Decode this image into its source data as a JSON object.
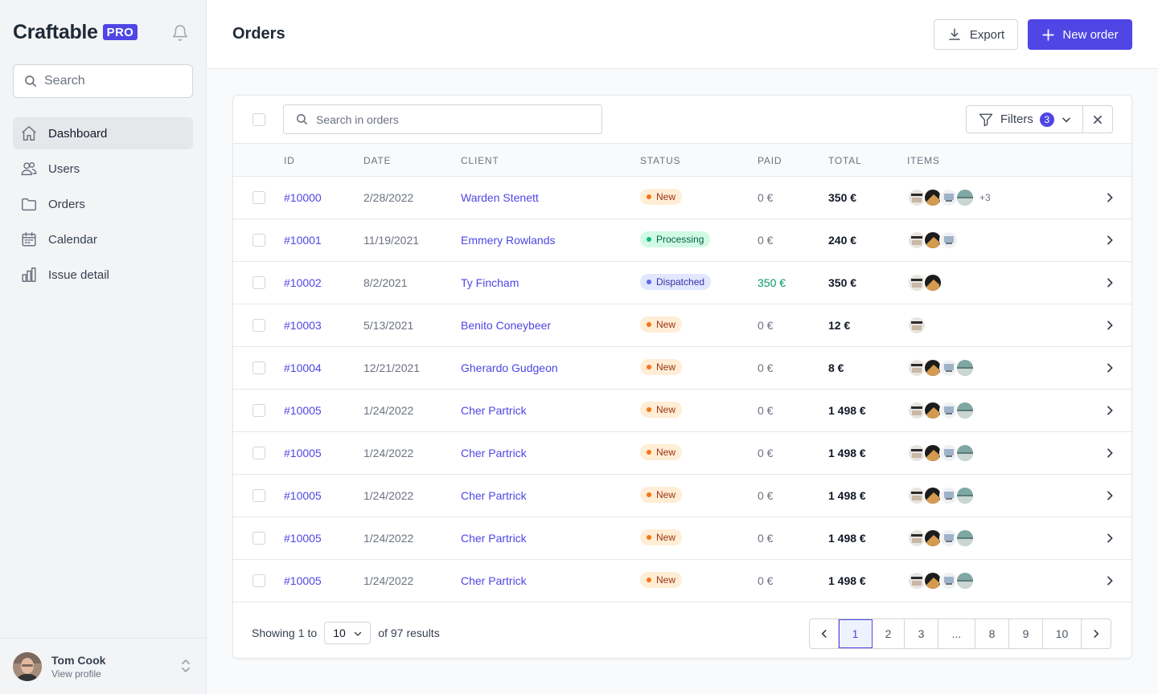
{
  "brand": {
    "name": "Craftable",
    "badge": "PRO"
  },
  "sidebar": {
    "search_placeholder": "Search",
    "items": [
      {
        "label": "Dashboard",
        "icon": "home-icon",
        "active": true
      },
      {
        "label": "Users",
        "icon": "users-icon",
        "active": false
      },
      {
        "label": "Orders",
        "icon": "folder-icon",
        "active": false
      },
      {
        "label": "Calendar",
        "icon": "calendar-icon",
        "active": false
      },
      {
        "label": "Issue detail",
        "icon": "bar-chart-icon",
        "active": false
      }
    ],
    "profile": {
      "name": "Tom Cook",
      "link": "View profile"
    }
  },
  "header": {
    "title": "Orders",
    "export_label": "Export",
    "new_label": "New order"
  },
  "toolbar": {
    "search_placeholder": "Search in orders",
    "filters_label": "Filters",
    "filters_count": "3"
  },
  "table": {
    "columns": [
      "ID",
      "DATE",
      "CLIENT",
      "STATUS",
      "PAID",
      "TOTAL",
      "ITEMS"
    ],
    "rows": [
      {
        "id": "#10000",
        "date": "2/28/2022",
        "client": "Warden Stenett",
        "status": "New",
        "paid": "0 €",
        "total": "350 €",
        "items": 4,
        "more": "+3"
      },
      {
        "id": "#10001",
        "date": "11/19/2021",
        "client": "Emmery Rowlands",
        "status": "Processing",
        "paid": "0 €",
        "total": "240 €",
        "items": 3,
        "more": ""
      },
      {
        "id": "#10002",
        "date": "8/2/2021",
        "client": "Ty Fincham",
        "status": "Dispatched",
        "paid": "350 €",
        "total": "350 €",
        "items": 2,
        "more": ""
      },
      {
        "id": "#10003",
        "date": "5/13/2021",
        "client": "Benito Coneybeer",
        "status": "New",
        "paid": "0 €",
        "total": "12 €",
        "items": 1,
        "more": ""
      },
      {
        "id": "#10004",
        "date": "12/21/2021",
        "client": "Gherardo Gudgeon",
        "status": "New",
        "paid": "0 €",
        "total": "8 €",
        "items": 4,
        "more": ""
      },
      {
        "id": "#10005",
        "date": "1/24/2022",
        "client": "Cher Partrick",
        "status": "New",
        "paid": "0 €",
        "total": "1 498 €",
        "items": 4,
        "more": ""
      },
      {
        "id": "#10005",
        "date": "1/24/2022",
        "client": "Cher Partrick",
        "status": "New",
        "paid": "0 €",
        "total": "1 498 €",
        "items": 4,
        "more": ""
      },
      {
        "id": "#10005",
        "date": "1/24/2022",
        "client": "Cher Partrick",
        "status": "New",
        "paid": "0 €",
        "total": "1 498 €",
        "items": 4,
        "more": ""
      },
      {
        "id": "#10005",
        "date": "1/24/2022",
        "client": "Cher Partrick",
        "status": "New",
        "paid": "0 €",
        "total": "1 498 €",
        "items": 4,
        "more": ""
      },
      {
        "id": "#10005",
        "date": "1/24/2022",
        "client": "Cher Partrick",
        "status": "New",
        "paid": "0 €",
        "total": "1 498 €",
        "items": 4,
        "more": ""
      }
    ]
  },
  "footer": {
    "showing_prefix": "Showing",
    "showing_from": "1",
    "showing_to_word": "to",
    "per_page": "10",
    "of_text": "of",
    "total": "97",
    "results_word": "results",
    "pages": [
      "1",
      "2",
      "3",
      "...",
      "8",
      "9",
      "10"
    ],
    "current_page": "1"
  },
  "colors": {
    "accent": "#4f46e5",
    "status_new_bg": "#ffedd5",
    "status_new_dot": "#f97316",
    "status_new_text": "#9a3412",
    "status_processing_bg": "#d1fae5",
    "status_processing_dot": "#10b981",
    "status_processing_text": "#065f46",
    "status_dispatched_bg": "#e0e7ff",
    "status_dispatched_dot": "#6366f1",
    "status_dispatched_text": "#3730a3",
    "paid_green": "#059669"
  }
}
